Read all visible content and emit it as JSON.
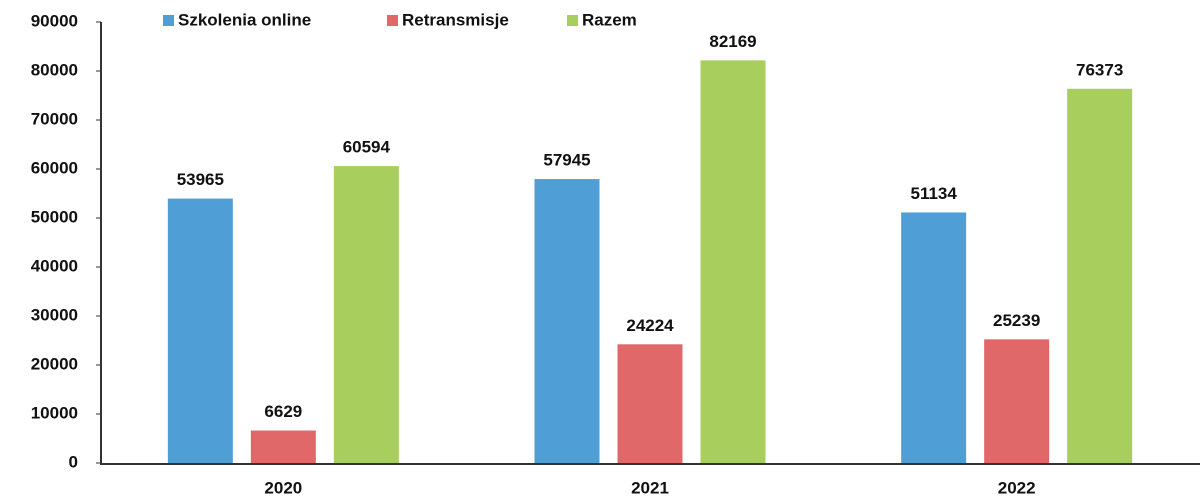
{
  "chart_data": {
    "type": "bar",
    "categories": [
      "2020",
      "2021",
      "2022"
    ],
    "series": [
      {
        "name": "Szkolenia online",
        "color": "#4f9fd6",
        "values": [
          53965,
          57945,
          51134
        ]
      },
      {
        "name": "Retransmisje",
        "color": "#e06868",
        "values": [
          6629,
          24224,
          25239
        ]
      },
      {
        "name": "Razem",
        "color": "#a8cf5e",
        "values": [
          60594,
          82169,
          76373
        ]
      }
    ],
    "ylim": [
      0,
      90000
    ],
    "yticks": [
      0,
      10000,
      20000,
      30000,
      40000,
      50000,
      60000,
      70000,
      80000,
      90000
    ],
    "grid": false
  }
}
